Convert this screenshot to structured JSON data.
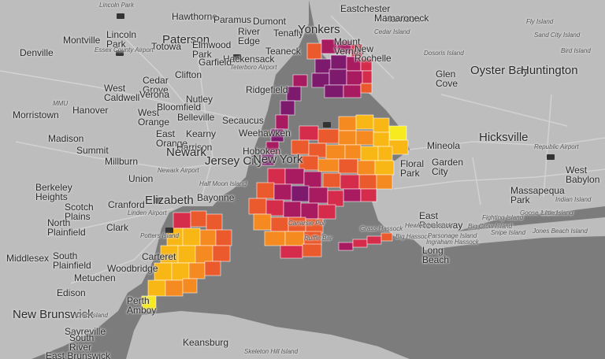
{
  "map": {
    "palette": [
      "#f7ea1e",
      "#f9b716",
      "#f48a20",
      "#ea5a2c",
      "#d42c4a",
      "#a81b60",
      "#7e1a6e"
    ],
    "water_color": "#7b7b7b",
    "land_color": "#bdbdbd",
    "labels": {
      "lincoln_park_top": "Lincoln Park",
      "hawthorne": "Hawthorne",
      "paramus": "Paramus",
      "dumont": "Dumont",
      "eastchester": "Eastchester",
      "harrison_top": "Harrison",
      "fly_island": "Fly Island",
      "montville": "Montville",
      "lincoln_park": "Lincoln\nPark",
      "paterson": "Paterson",
      "river_edge": "River\nEdge",
      "tenafly": "Tenafly",
      "yonkers": "Yonkers",
      "mamaroneck": "Mamaroneck",
      "cedar_island": "Cedar Island",
      "sand_city_island": "Sand City Island",
      "denville": "Denville",
      "totowa": "Totowa",
      "elmwood_park": "Elmwood\nPark",
      "hackensack": "Hackensack",
      "mount_vernon": "Mount\nVernon",
      "new_rochelle": "New\nRochelle",
      "essex_county_airport": "Essex County Airport",
      "garfield": "Garfield",
      "teterboro_airport": "Teterboro Airport",
      "teaneck": "Teaneck",
      "dosoris_island": "Dosoris Island",
      "bird_island": "Bird Island",
      "glen_cove": "Glen\nCove",
      "oyster_bay": "Oyster Bay",
      "huntington": "Huntington",
      "cedar_grove": "Cedar\nGrove",
      "west_caldwell": "West\nCaldwell",
      "verona": "Verona",
      "clifton": "Clifton",
      "ridgefield": "Ridgefield",
      "mmu": "MMU",
      "morristown": "Morristown",
      "hanover": "Hanover",
      "west_orange": "West\nOrange",
      "bloomfield": "Bloomfield",
      "nutley": "Nutley",
      "belleville": "Belleville",
      "secaucus": "Secaucus",
      "weehawken": "Weehawken",
      "madison": "Madison",
      "east_orange": "East\nOrange",
      "kearny": "Kearny",
      "harrison": "Harrison",
      "hoboken": "Hoboken",
      "summit": "Summit",
      "newark": "Newark",
      "jersey_city": "Jersey City",
      "new_york": "New York",
      "hicksville": "Hicksville",
      "mineola": "Mineola",
      "floral_park": "Floral\nPark",
      "garden_city": "Garden\nCity",
      "republic_airport": "Republic Airport",
      "west_babylon": "West\nBabylon",
      "millburn": "Millburn",
      "union": "Union",
      "newark_airport": "Newark Airport",
      "half_moon_island": "Half Moon Island",
      "berkeley_heights": "Berkeley\nHeights",
      "elizabeth": "Elizabeth",
      "bayonne": "Bayonne",
      "massapequa_park": "Massapequa\nPark",
      "indian_island": "Indian Island",
      "scotch_plains": "Scotch\nPlains",
      "cranford": "Cranford",
      "linden_airport": "Linden Airport",
      "east_rockaway": "East\nRockaway",
      "fighting_island": "Fighting Island",
      "goose_island": "Goose Island",
      "little_island": "Little Island",
      "north_plainfield": "North\nPlainfield",
      "clark": "Clark",
      "potters_island": "Potters Island",
      "canarsie_pol": "Canarsie Pol",
      "grass_hassock": "Grass Hassock",
      "hewlett_hassock": "Hewlett Hassock",
      "big_crow_island": "Big Crow Island",
      "jones_beach_island": "Jones Beach Island",
      "ruffle_bar": "Ruffle Bar",
      "big_hassock": "Big Hassock",
      "parsonage_island": "Parsonage Island",
      "snipe_island": "Snipe Island",
      "ingraham_hassock": "Ingraham Hassock",
      "carteret": "Carteret",
      "long_beach": "Long\nBeach",
      "middlesex": "Middlesex",
      "south_plainfield": "South\nPlainfield",
      "metuchen": "Metuchen",
      "woodbridge": "Woodbridge",
      "edison": "Edison",
      "perth_amboy": "Perth\nAmboy",
      "new_brunswick": "New Brunswick",
      "crab_island": "Crab Island",
      "sayreville": "Sayreville",
      "south_river": "South\nRiver",
      "keansburg": "Keansburg",
      "skeleton_hill_island": "Skeleton Hill Island",
      "east_brunswick": "East Brunswick"
    }
  }
}
